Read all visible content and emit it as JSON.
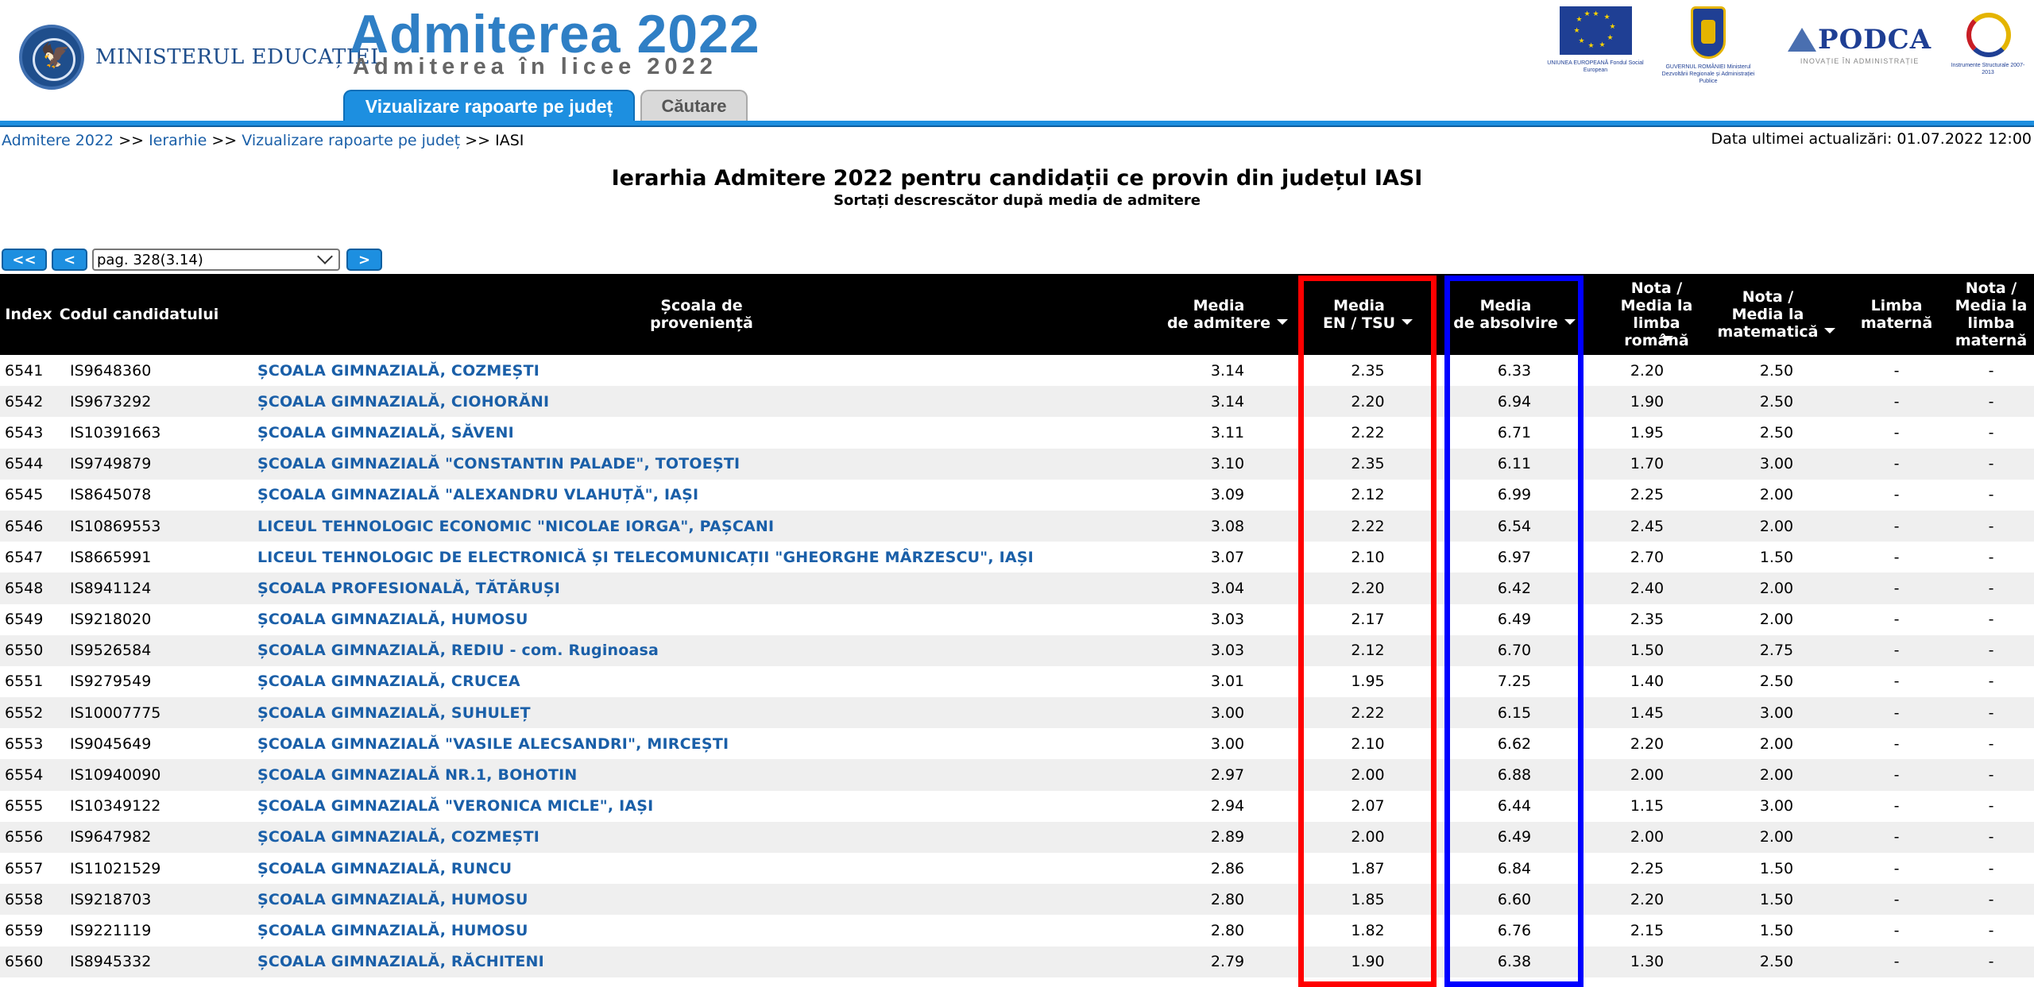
{
  "header": {
    "ministry": "MINISTERUL EDUCAȚIEI",
    "brand_title": "Admiterea 2022",
    "brand_subtitle": "Admiterea în licee 2022",
    "tabs": [
      {
        "label": "Vizualizare rapoarte pe județ",
        "active": true
      },
      {
        "label": "Căutare",
        "active": false
      }
    ],
    "logos": {
      "eu_caption": "UNIUNEA EUROPEANĂ Fondul Social European",
      "gov_caption": "GUVERNUL ROMÂNIEI Ministerul Dezvoltării Regionale și Administrației Publice",
      "podca": "PODCA",
      "podca_sub": "INOVAȚIE ÎN ADMINISTRAȚIE",
      "is_caption": "Instrumente Structurale 2007-2013"
    },
    "accent_color": "#1d8fe0"
  },
  "breadcrumb": {
    "items": [
      "Admitere 2022",
      "Ierarhie",
      "Vizualizare rapoarte pe județ"
    ],
    "current": "IASI",
    "separator": ">>"
  },
  "last_update": "Data ultimei actualizări: 01.07.2022 12:00",
  "title": "Ierarhia Admitere 2022 pentru candidații ce provin din județul IASI",
  "subtitle": "Sortați descrescător după media de admitere",
  "pager": {
    "first": "<<",
    "prev": "<",
    "next": ">",
    "selected": "pag. 328(3.14)"
  },
  "table": {
    "headers": {
      "index": "Index",
      "code": "Codul candidatului",
      "school": "Școala de\nproveniență",
      "admission": "Media\nde admitere",
      "en": "Media\nEN / TSU",
      "abs": "Media\nde absolvire",
      "ro": "Nota /\nMedia la\nlimba\nromână",
      "mat": "Nota /\nMedia la\nmatematică",
      "lm": "Limba\nmaternă",
      "nlm": "Nota /\nMedia la\nlimba\nmaternă"
    },
    "rows": [
      [
        "6541",
        "IS9648360",
        "ȘCOALA GIMNAZIALĂ, COZMEȘTI",
        "3.14",
        "2.35",
        "6.33",
        "2.20",
        "2.50",
        "-",
        "-"
      ],
      [
        "6542",
        "IS9673292",
        "ȘCOALA GIMNAZIALĂ, CIOHORĂNI",
        "3.14",
        "2.20",
        "6.94",
        "1.90",
        "2.50",
        "-",
        "-"
      ],
      [
        "6543",
        "IS10391663",
        "ȘCOALA GIMNAZIALĂ, SĂVENI",
        "3.11",
        "2.22",
        "6.71",
        "1.95",
        "2.50",
        "-",
        "-"
      ],
      [
        "6544",
        "IS9749879",
        "ȘCOALA GIMNAZIALĂ \"CONSTANTIN PALADE\", TOTOEȘTI",
        "3.10",
        "2.35",
        "6.11",
        "1.70",
        "3.00",
        "-",
        "-"
      ],
      [
        "6545",
        "IS8645078",
        "ȘCOALA GIMNAZIALĂ \"ALEXANDRU VLAHUȚĂ\", IAȘI",
        "3.09",
        "2.12",
        "6.99",
        "2.25",
        "2.00",
        "-",
        "-"
      ],
      [
        "6546",
        "IS10869553",
        "LICEUL TEHNOLOGIC ECONOMIC \"NICOLAE IORGA\", PAȘCANI",
        "3.08",
        "2.22",
        "6.54",
        "2.45",
        "2.00",
        "-",
        "-"
      ],
      [
        "6547",
        "IS8665991",
        "LICEUL TEHNOLOGIC DE ELECTRONICĂ ȘI TELECOMUNICAȚII \"GHEORGHE MÂRZESCU\", IAȘI",
        "3.07",
        "2.10",
        "6.97",
        "2.70",
        "1.50",
        "-",
        "-"
      ],
      [
        "6548",
        "IS8941124",
        "ȘCOALA PROFESIONALĂ, TĂTĂRUȘI",
        "3.04",
        "2.20",
        "6.42",
        "2.40",
        "2.00",
        "-",
        "-"
      ],
      [
        "6549",
        "IS9218020",
        "ȘCOALA GIMNAZIALĂ, HUMOSU",
        "3.03",
        "2.17",
        "6.49",
        "2.35",
        "2.00",
        "-",
        "-"
      ],
      [
        "6550",
        "IS9526584",
        "ȘCOALA GIMNAZIALĂ, REDIU - com. Ruginoasa",
        "3.03",
        "2.12",
        "6.70",
        "1.50",
        "2.75",
        "-",
        "-"
      ],
      [
        "6551",
        "IS9279549",
        "ȘCOALA GIMNAZIALĂ, CRUCEA",
        "3.01",
        "1.95",
        "7.25",
        "1.40",
        "2.50",
        "-",
        "-"
      ],
      [
        "6552",
        "IS10007775",
        "ȘCOALA GIMNAZIALĂ, SUHULEȚ",
        "3.00",
        "2.22",
        "6.15",
        "1.45",
        "3.00",
        "-",
        "-"
      ],
      [
        "6553",
        "IS9045649",
        "ȘCOALA GIMNAZIALĂ \"VASILE ALECSANDRI\", MIRCEȘTI",
        "3.00",
        "2.10",
        "6.62",
        "2.20",
        "2.00",
        "-",
        "-"
      ],
      [
        "6554",
        "IS10940090",
        "ȘCOALA GIMNAZIALĂ NR.1, BOHOTIN",
        "2.97",
        "2.00",
        "6.88",
        "2.00",
        "2.00",
        "-",
        "-"
      ],
      [
        "6555",
        "IS10349122",
        "ȘCOALA GIMNAZIALĂ \"VERONICA MICLE\", IAȘI",
        "2.94",
        "2.07",
        "6.44",
        "1.15",
        "3.00",
        "-",
        "-"
      ],
      [
        "6556",
        "IS9647982",
        "ȘCOALA GIMNAZIALĂ, COZMEȘTI",
        "2.89",
        "2.00",
        "6.49",
        "2.00",
        "2.00",
        "-",
        "-"
      ],
      [
        "6557",
        "IS11021529",
        "ȘCOALA GIMNAZIALĂ, RUNCU",
        "2.86",
        "1.87",
        "6.84",
        "2.25",
        "1.50",
        "-",
        "-"
      ],
      [
        "6558",
        "IS9218703",
        "ȘCOALA GIMNAZIALĂ, HUMOSU",
        "2.80",
        "1.85",
        "6.60",
        "2.20",
        "1.50",
        "-",
        "-"
      ],
      [
        "6559",
        "IS9221119",
        "ȘCOALA GIMNAZIALĂ, HUMOSU",
        "2.80",
        "1.82",
        "6.76",
        "2.15",
        "1.50",
        "-",
        "-"
      ],
      [
        "6560",
        "IS8945332",
        "ȘCOALA GIMNAZIALĂ, RĂCHITENI",
        "2.79",
        "1.90",
        "6.38",
        "1.30",
        "2.50",
        "-",
        "-"
      ]
    ]
  },
  "highlights": [
    {
      "column": "en",
      "color": "#ff0000"
    },
    {
      "column": "abs",
      "color": "#0000ff"
    }
  ]
}
